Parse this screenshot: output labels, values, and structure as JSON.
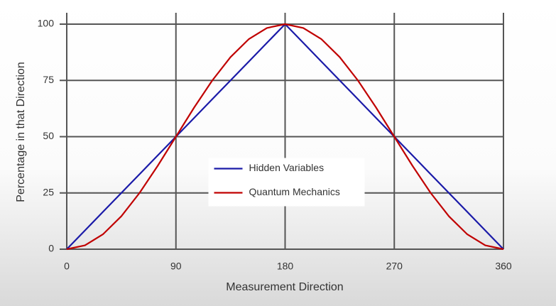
{
  "chart_data": {
    "type": "line",
    "x_label": "Measurement Direction",
    "y_label": "Percentage in that Direction",
    "x": [
      0,
      15,
      30,
      45,
      60,
      75,
      90,
      105,
      120,
      135,
      150,
      165,
      180,
      195,
      210,
      225,
      240,
      255,
      270,
      285,
      300,
      315,
      330,
      345,
      360
    ],
    "series": [
      {
        "name": "Hidden Variables",
        "color": "#1a1aa8",
        "values": [
          0,
          8.33,
          16.67,
          25,
          33.33,
          41.67,
          50,
          58.33,
          66.67,
          75,
          83.33,
          91.67,
          100,
          91.67,
          83.33,
          75,
          66.67,
          58.33,
          50,
          41.67,
          33.33,
          25,
          16.67,
          8.33,
          0
        ]
      },
      {
        "name": "Quantum Mechanics",
        "color": "#c00000",
        "values": [
          0,
          1.7,
          6.7,
          14.64,
          25,
          37.06,
          50,
          62.94,
          75,
          85.36,
          93.3,
          98.3,
          100,
          98.3,
          93.3,
          85.36,
          75,
          62.94,
          50,
          37.06,
          25,
          14.64,
          6.7,
          1.7,
          0
        ]
      }
    ],
    "xlim": [
      0,
      360
    ],
    "xticks": [
      0,
      90,
      180,
      270,
      360
    ],
    "ylim": [
      0,
      100
    ],
    "yticks": [
      0,
      25,
      50,
      75,
      100
    ],
    "grid": true,
    "legend": "center"
  }
}
